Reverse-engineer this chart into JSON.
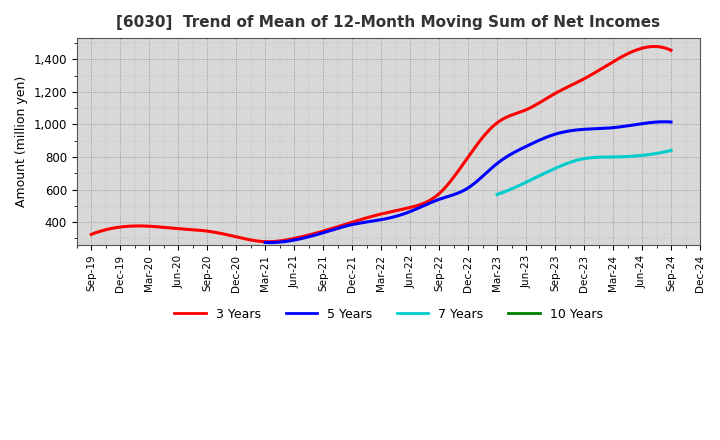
{
  "title": "[6030]  Trend of Mean of 12-Month Moving Sum of Net Incomes",
  "ylabel": "Amount (million yen)",
  "background_color": "#ffffff",
  "plot_bg_color": "#e8e8e8",
  "grid_color": "#888888",
  "x_labels": [
    "Sep-19",
    "Dec-19",
    "Mar-20",
    "Jun-20",
    "Sep-20",
    "Dec-20",
    "Mar-21",
    "Jun-21",
    "Sep-21",
    "Dec-21",
    "Mar-22",
    "Jun-22",
    "Sep-22",
    "Dec-22",
    "Mar-23",
    "Jun-23",
    "Sep-23",
    "Dec-23",
    "Mar-24",
    "Jun-24",
    "Sep-24",
    "Dec-24"
  ],
  "ylim": [
    260,
    1530
  ],
  "yticks": [
    400,
    600,
    800,
    1000,
    1200,
    1400
  ],
  "series": {
    "3 Years": {
      "color": "#ff0000",
      "data_x": [
        0,
        1,
        2,
        3,
        4,
        5,
        6,
        7,
        8,
        9,
        10,
        11,
        12,
        13,
        14,
        15,
        16,
        17,
        18,
        19,
        20
      ],
      "data_y": [
        325,
        370,
        375,
        360,
        345,
        310,
        280,
        300,
        345,
        400,
        450,
        490,
        575,
        800,
        1010,
        1090,
        1190,
        1280,
        1385,
        1468,
        1455
      ]
    },
    "5 Years": {
      "color": "#0000ff",
      "data_x": [
        6,
        7,
        8,
        9,
        10,
        11,
        12,
        13,
        14,
        15,
        16,
        17,
        18,
        19,
        20
      ],
      "data_y": [
        275,
        290,
        335,
        385,
        415,
        465,
        540,
        610,
        760,
        865,
        940,
        970,
        980,
        1005,
        1015
      ]
    },
    "7 Years": {
      "color": "#00cccc",
      "data_x": [
        14,
        15,
        16,
        17,
        18,
        19,
        20
      ],
      "data_y": [
        570,
        645,
        730,
        790,
        800,
        810,
        840
      ]
    },
    "10 Years": {
      "color": "#008000",
      "data_x": [],
      "data_y": []
    }
  },
  "legend_labels": [
    "3 Years",
    "5 Years",
    "7 Years",
    "10 Years"
  ],
  "legend_colors": [
    "#ff0000",
    "#0000ff",
    "#00cccc",
    "#008000"
  ]
}
